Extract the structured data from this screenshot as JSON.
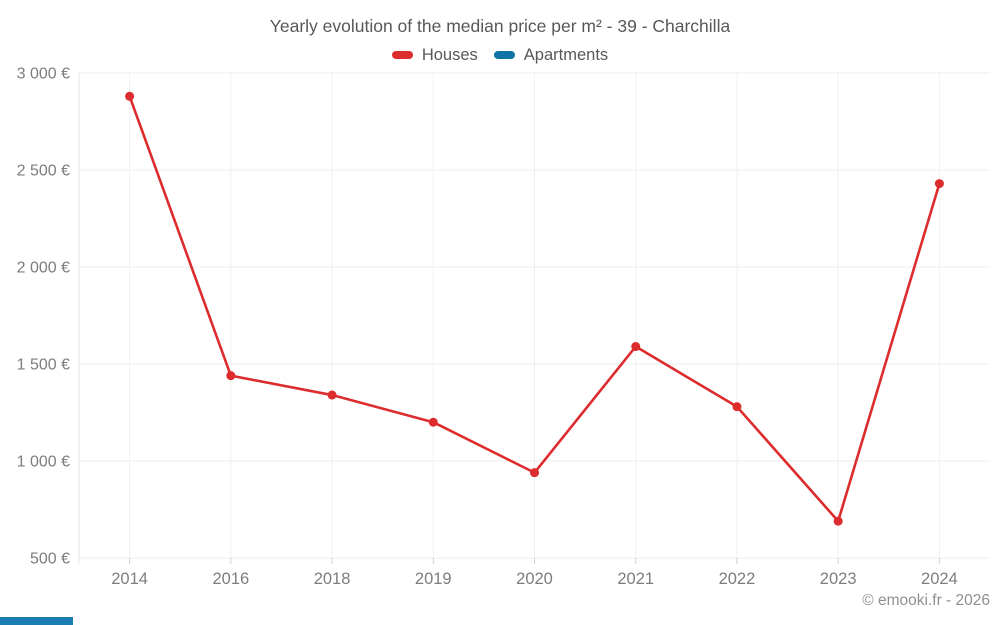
{
  "header": {
    "title": "Yearly evolution of the median price per m² - 39 - Charchilla"
  },
  "chart_data": {
    "type": "line",
    "title": "Yearly evolution of the median price per m² - 39 - Charchilla",
    "categories": [
      "2014",
      "2016",
      "2018",
      "2019",
      "2020",
      "2021",
      "2022",
      "2023",
      "2024"
    ],
    "series": [
      {
        "name": "Houses",
        "color": "#dd2c2e",
        "values": [
          2880,
          1440,
          1340,
          1200,
          940,
          1590,
          1280,
          690,
          2430
        ]
      },
      {
        "name": "Apartments",
        "color": "#1274a5",
        "values": []
      }
    ],
    "xlabel": "",
    "ylabel": "",
    "ylim": [
      500,
      3000
    ],
    "y_ticks": [
      {
        "value": 500,
        "label": "500 €"
      },
      {
        "value": 1000,
        "label": "1 000 €"
      },
      {
        "value": 1500,
        "label": "1 500 €"
      },
      {
        "value": 2000,
        "label": "2 000 €"
      },
      {
        "value": 2500,
        "label": "2 500 €"
      },
      {
        "value": 3000,
        "label": "3 000 €"
      }
    ],
    "grid": true,
    "legend_position": "top"
  },
  "footer": {
    "copyright": "© emooki.fr - 2026"
  },
  "colors": {
    "houses": "#dd2c2e",
    "apartments": "#1274a5",
    "axis_text": "#7d7d7d",
    "gridline": "#ececec",
    "corner_bar": "#1a7cb0"
  }
}
